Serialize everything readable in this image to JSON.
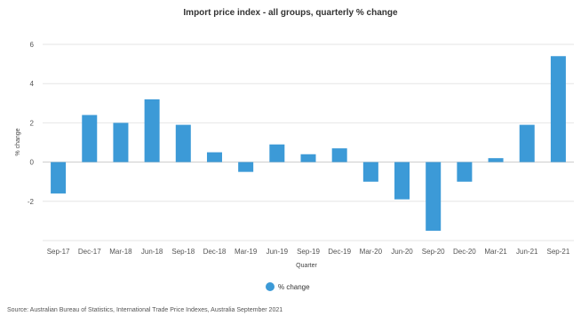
{
  "chart_data": {
    "type": "bar",
    "title": "Import price index - all groups, quarterly % change",
    "xlabel": "Quarter",
    "ylabel": "% change",
    "categories": [
      "Sep-17",
      "Dec-17",
      "Mar-18",
      "Jun-18",
      "Sep-18",
      "Dec-18",
      "Mar-19",
      "Jun-19",
      "Sep-19",
      "Dec-19",
      "Mar-20",
      "Jun-20",
      "Sep-20",
      "Dec-20",
      "Mar-21",
      "Jun-21",
      "Sep-21"
    ],
    "series": [
      {
        "name": "% change",
        "values": [
          -1.6,
          2.4,
          2.0,
          3.2,
          1.9,
          0.5,
          -0.5,
          0.9,
          0.4,
          0.7,
          -1.0,
          -1.9,
          -3.5,
          -1.0,
          0.2,
          1.9,
          5.4
        ]
      }
    ],
    "ylim": [
      -4,
      6
    ],
    "yticks": [
      6,
      4,
      2,
      0,
      -2
    ],
    "grid": true,
    "legend": "bottom-center",
    "bar_color": "#3c9ad7"
  },
  "source_note": "Source: Australian Bureau of Statistics, International Trade Price Indexes, Australia September 2021"
}
